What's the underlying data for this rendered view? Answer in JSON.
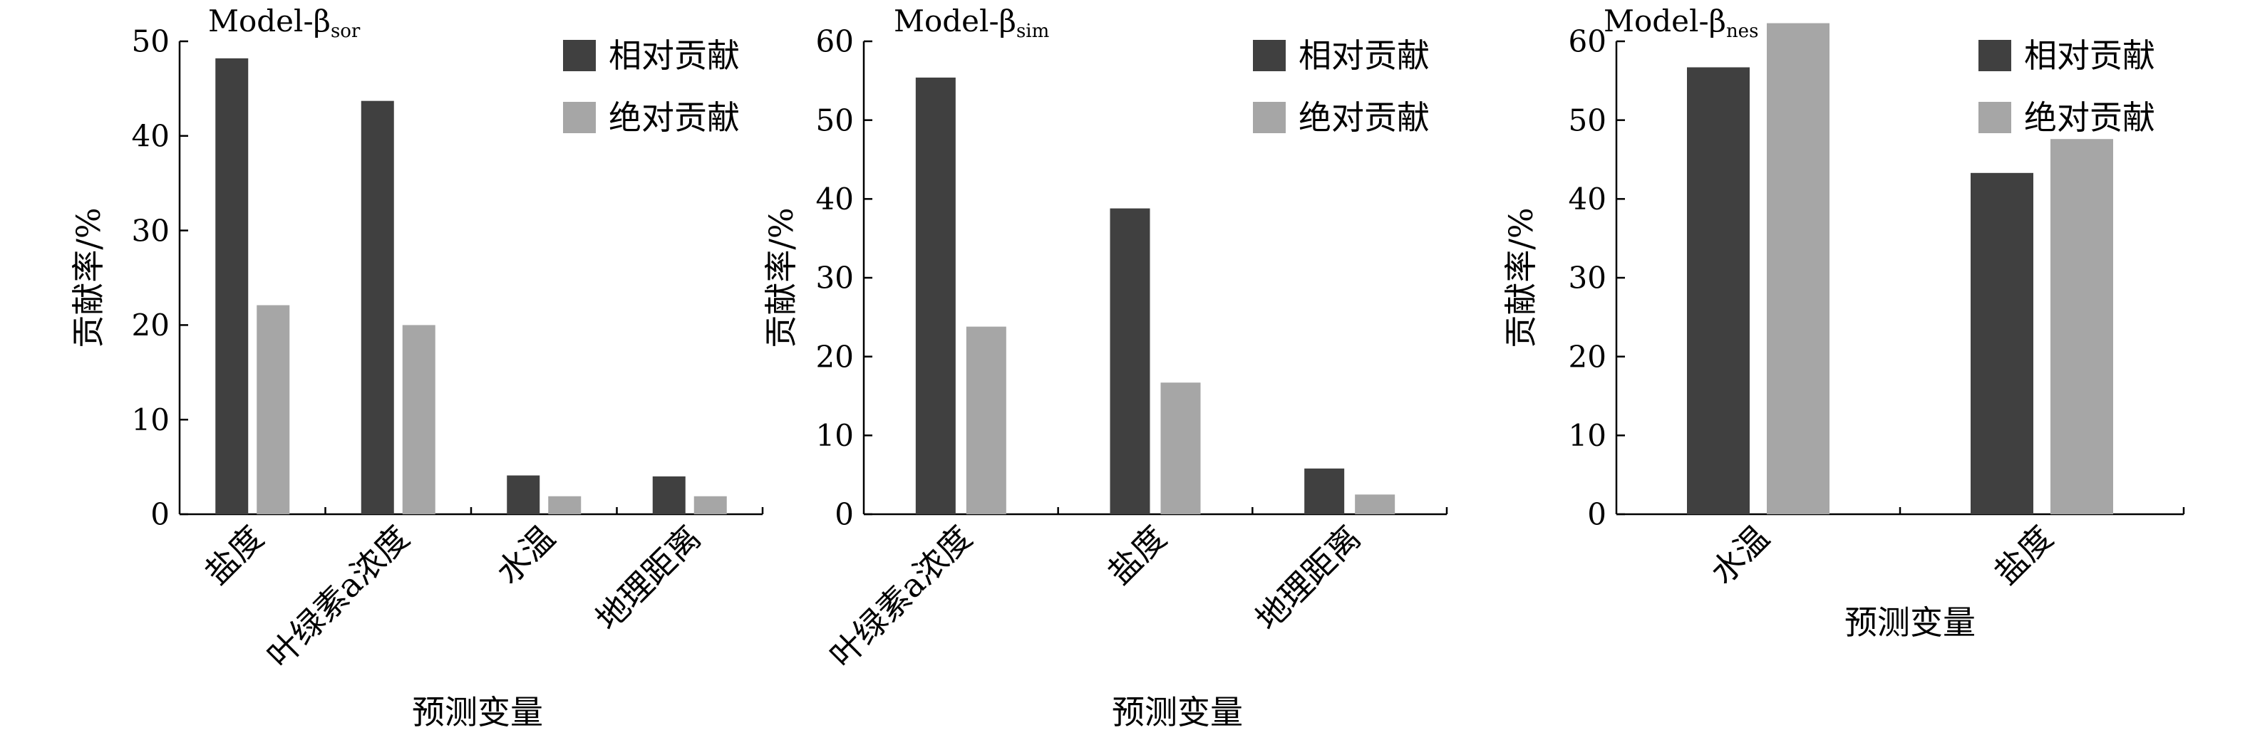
{
  "chart_data": [
    {
      "type": "bar",
      "title": "Model-β",
      "title_subscript": "sor",
      "xlabel": "预测变量",
      "ylabel": "贡献率/%",
      "ylim": [
        0,
        50
      ],
      "yticks": [
        "0",
        "10",
        "20",
        "30",
        "40",
        "50"
      ],
      "categories": [
        "盐度",
        "叶绿素a浓度",
        "水温",
        "地理距离"
      ],
      "series": [
        {
          "name": "相对贡献",
          "values": [
            48.2,
            43.7,
            4.1,
            4.0
          ]
        },
        {
          "name": "绝对贡献",
          "values": [
            22.1,
            20.0,
            1.9,
            1.9
          ]
        }
      ],
      "legend_position": "top-right",
      "grid": false
    },
    {
      "type": "bar",
      "title": "Model-β",
      "title_subscript": "sim",
      "xlabel": "预测变量",
      "ylabel": "贡献率/%",
      "ylim": [
        0,
        60
      ],
      "yticks": [
        "0",
        "10",
        "20",
        "30",
        "40",
        "50",
        "60"
      ],
      "categories": [
        "叶绿素a浓度",
        "盐度",
        "地理距离"
      ],
      "series": [
        {
          "name": "相对贡献",
          "values": [
            55.4,
            38.8,
            5.8
          ]
        },
        {
          "name": "绝对贡献",
          "values": [
            23.8,
            16.7,
            2.5
          ]
        }
      ],
      "legend_position": "top-right",
      "grid": false
    },
    {
      "type": "bar",
      "title": "Model-β",
      "title_subscript": "nes",
      "xlabel": "预测变量",
      "ylabel": "贡献率/%",
      "ylim": [
        0,
        60
      ],
      "yticks": [
        "0",
        "10",
        "20",
        "30",
        "40",
        "50",
        "60"
      ],
      "categories": [
        "水温",
        "盐度"
      ],
      "series": [
        {
          "name": "相对贡献",
          "values": [
            56.7,
            43.3
          ]
        },
        {
          "name": "绝对贡献",
          "values": [
            62.3,
            47.6
          ]
        }
      ],
      "legend_position": "top-right",
      "grid": false
    }
  ],
  "colors": {
    "relative": "#404040",
    "absolute": "#a6a6a6",
    "axis": "#000000"
  }
}
